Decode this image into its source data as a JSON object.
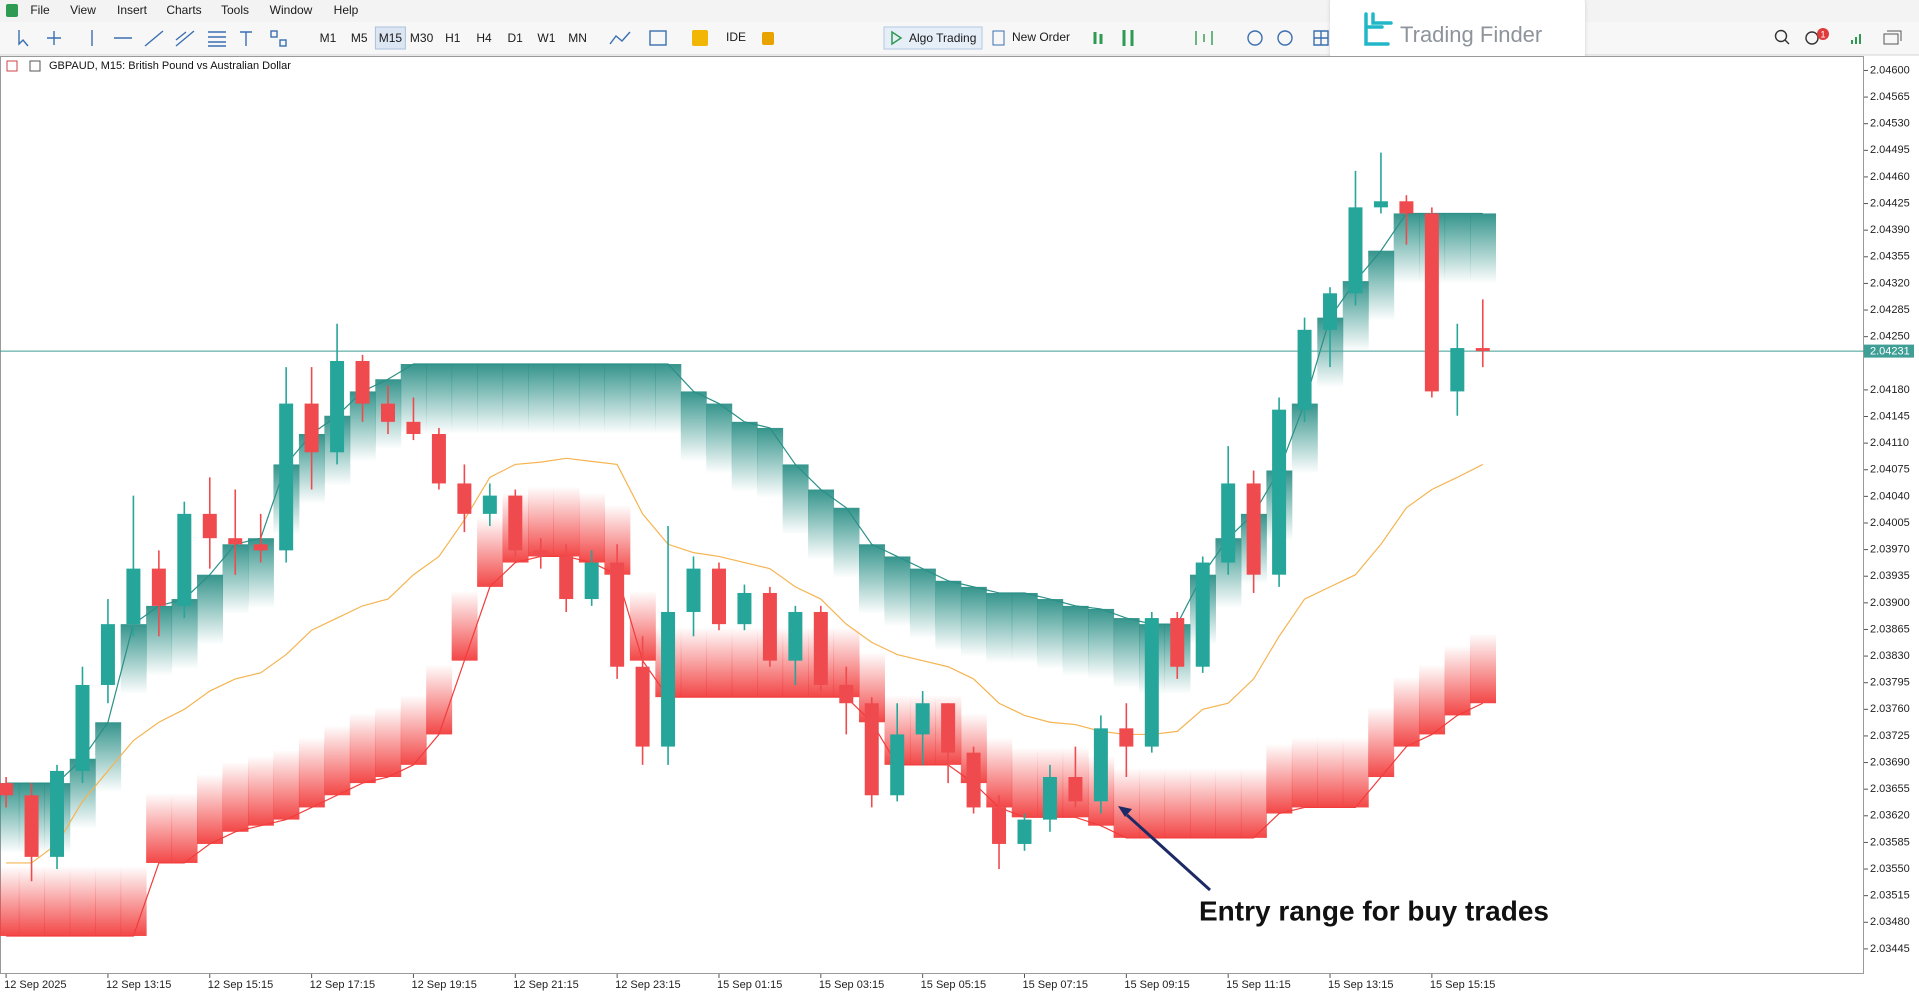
{
  "menu": [
    "File",
    "View",
    "Insert",
    "Charts",
    "Tools",
    "Window",
    "Help"
  ],
  "toolbar": {
    "timeframes": [
      "M1",
      "M5",
      "M15",
      "M30",
      "H1",
      "H4",
      "D1",
      "W1",
      "MN"
    ],
    "active_timeframe_index": 2,
    "ide": "IDE",
    "algo_trading": "Algo Trading",
    "new_order": "New Order"
  },
  "logo": "Trading Finder",
  "notification_count": 1,
  "chart_data": {
    "type": "candlestick",
    "title": "GBPAUD, M15:  British Pound vs Australian Dollar",
    "annotation": "Entry range for buy trades",
    "up_color": "#26a69a",
    "down_color": "#ef4b4f",
    "open": [
      2.03663,
      2.03647,
      2.03566,
      2.03679,
      2.03792,
      2.03872,
      2.03945,
      2.03896,
      2.04017,
      2.03985,
      2.03977,
      2.03969,
      2.04162,
      2.04098,
      2.04218,
      2.04162,
      2.04138,
      2.04122,
      2.04057,
      2.04017,
      2.04041,
      2.03969,
      2.03961,
      2.03905,
      2.03953,
      2.03816,
      2.03711,
      2.03888,
      2.03945,
      2.03872,
      2.03913,
      2.03824,
      2.03888,
      2.03792,
      2.03768,
      2.03647,
      2.03727,
      2.03768,
      2.03703,
      2.03631,
      2.03583,
      2.03615,
      2.03671,
      2.03639,
      2.03735,
      2.03711,
      2.0388,
      2.03816,
      2.03953,
      2.04057,
      2.03937,
      2.04154,
      2.04259,
      2.04307,
      2.0442,
      2.04428,
      2.04412,
      2.04178,
      2.04235
    ],
    "high": [
      2.03671,
      2.03663,
      2.03687,
      2.03816,
      2.03905,
      2.04041,
      2.03969,
      2.04033,
      2.04065,
      2.04049,
      2.04017,
      2.0421,
      2.0421,
      2.04267,
      2.04226,
      2.04186,
      2.0417,
      2.0413,
      2.04082,
      2.04057,
      2.04049,
      2.03985,
      2.03977,
      2.03969,
      2.03977,
      2.03856,
      2.04001,
      2.03961,
      2.03953,
      2.03924,
      2.03921,
      2.03896,
      2.03896,
      2.03816,
      2.03776,
      2.03768,
      2.03784,
      2.03768,
      2.03711,
      2.03647,
      2.03623,
      2.03687,
      2.03711,
      2.03752,
      2.03768,
      2.03888,
      2.03888,
      2.03961,
      2.04106,
      2.04074,
      2.0417,
      2.04275,
      2.04315,
      2.04468,
      2.04492,
      2.04436,
      2.0442,
      2.04267,
      2.04299
    ],
    "low": [
      2.03631,
      2.03534,
      2.0355,
      2.03663,
      2.03768,
      2.03856,
      2.03856,
      2.0388,
      2.03945,
      2.03937,
      2.03953,
      2.03953,
      2.04049,
      2.04082,
      2.04138,
      2.04122,
      2.04114,
      2.04049,
      2.03993,
      2.04001,
      2.03961,
      2.03945,
      2.03888,
      2.03896,
      2.038,
      2.03687,
      2.03687,
      2.03856,
      2.03864,
      2.03864,
      2.03816,
      2.03792,
      2.03784,
      2.03727,
      2.03631,
      2.03639,
      2.03687,
      2.03663,
      2.03623,
      2.0355,
      2.03574,
      2.03599,
      2.03631,
      2.03623,
      2.03671,
      2.03703,
      2.038,
      2.03808,
      2.03937,
      2.03913,
      2.03921,
      2.04138,
      2.0421,
      2.04291,
      2.04412,
      2.04371,
      2.0417,
      2.04146,
      2.0421
    ],
    "close": [
      2.03647,
      2.03566,
      2.03679,
      2.03792,
      2.03872,
      2.03945,
      2.03896,
      2.04017,
      2.03985,
      2.03977,
      2.03969,
      2.04162,
      2.04098,
      2.04218,
      2.04162,
      2.04138,
      2.04122,
      2.04057,
      2.04017,
      2.04041,
      2.03969,
      2.03961,
      2.03905,
      2.03953,
      2.03816,
      2.03711,
      2.03888,
      2.03945,
      2.03872,
      2.03913,
      2.03824,
      2.03888,
      2.03792,
      2.03768,
      2.03647,
      2.03727,
      2.03768,
      2.03703,
      2.03631,
      2.03583,
      2.03615,
      2.03671,
      2.03639,
      2.03735,
      2.03711,
      2.0388,
      2.03816,
      2.03953,
      2.04057,
      2.03937,
      2.04154,
      2.04259,
      2.04307,
      2.0442,
      2.04428,
      2.04412,
      2.04178,
      2.04235,
      2.04231
    ],
    "bands": [
      {
        "color": "#2a8f86",
        "fade": "down",
        "values": [
          2.03663,
          2.03663,
          2.03663,
          2.03695,
          2.03743,
          2.03872,
          2.03896,
          2.03905,
          2.03937,
          2.03977,
          2.03985,
          2.04082,
          2.04122,
          2.04146,
          2.04178,
          2.04194,
          2.04214,
          2.04214,
          2.04214,
          2.04214,
          2.04214,
          2.04214,
          2.04214,
          2.04214,
          2.04214,
          2.04214,
          2.04214,
          2.04178,
          2.04162,
          2.04138,
          2.0413,
          2.04082,
          2.04049,
          2.04025,
          2.03977,
          2.03961,
          2.03945,
          2.03929,
          2.03921,
          2.03913,
          2.03913,
          2.03905,
          2.03896,
          2.03892,
          2.0388,
          2.03872,
          2.03872,
          2.03937,
          2.03985,
          2.04017,
          2.04074,
          2.04162,
          2.04275,
          2.04323,
          2.04363,
          2.04412,
          2.04412,
          2.04412,
          2.04412
        ]
      },
      {
        "color": "#f23c3c",
        "fade": "up",
        "values": [
          2.03462,
          2.03462,
          2.03462,
          2.03462,
          2.03462,
          2.03462,
          2.03558,
          2.03558,
          2.03583,
          2.03599,
          2.03607,
          2.03615,
          2.03631,
          2.03647,
          2.03663,
          2.03671,
          2.03687,
          2.03727,
          2.03824,
          2.03921,
          2.03953,
          2.03961,
          2.03961,
          2.03953,
          2.03937,
          2.03824,
          2.03776,
          2.03776,
          2.03776,
          2.03776,
          2.03776,
          2.03776,
          2.03776,
          2.03776,
          2.03743,
          2.03687,
          2.03687,
          2.03687,
          2.03663,
          2.03631,
          2.03618,
          2.03618,
          2.03618,
          2.03607,
          2.03591,
          2.03591,
          2.03591,
          2.03591,
          2.03591,
          2.03591,
          2.03623,
          2.03631,
          2.03631,
          2.03631,
          2.03671,
          2.03711,
          2.03727,
          2.03752,
          2.03768
        ]
      }
    ],
    "lines": [
      {
        "color": "#f5b451",
        "values": [
          2.03558,
          2.03558,
          2.03583,
          2.03639,
          2.03679,
          2.03719,
          2.03743,
          2.0376,
          2.03784,
          2.038,
          2.03808,
          2.03832,
          2.03864,
          2.0388,
          2.03896,
          2.03905,
          2.03937,
          2.03961,
          2.04009,
          2.04065,
          2.04082,
          2.04085,
          2.0409,
          2.04086,
          2.04082,
          2.04017,
          2.03977,
          2.03966,
          2.03961,
          2.03953,
          2.03945,
          2.03921,
          2.03905,
          2.03872,
          2.03848,
          2.03832,
          2.03824,
          2.03816,
          2.038,
          2.03768,
          2.03752,
          2.03743,
          2.0374,
          2.03731,
          2.03727,
          2.03727,
          2.03731,
          2.0376,
          2.03768,
          2.038,
          2.03856,
          2.03905,
          2.03921,
          2.03937,
          2.03977,
          2.04025,
          2.04049,
          2.04065,
          2.04082
        ]
      }
    ],
    "current_price": 2.04231,
    "current_price_color": "#3f9e95",
    "ylim": [
      2.03412,
      2.04619
    ],
    "yticks": [
      {
        "value": 2.046,
        "label": "2.04600"
      },
      2.04565,
      {
        "value": 2.0453,
        "label": "2.04530"
      },
      2.04495,
      {
        "value": 2.0446,
        "label": "2.04460"
      },
      2.04425,
      {
        "value": 2.0439,
        "label": "2.04390"
      },
      2.04355,
      {
        "value": 2.0432,
        "label": "2.04320"
      },
      2.04285,
      {
        "value": 2.0425,
        "label": "2.04250"
      },
      {
        "value": 2.0418,
        "label": "2.04180"
      },
      2.04145,
      {
        "value": 2.0411,
        "label": "2.04110"
      },
      2.04075,
      {
        "value": 2.0404,
        "label": "2.04040"
      },
      2.04005,
      {
        "value": 2.0397,
        "label": "2.03970"
      },
      2.03935,
      {
        "value": 2.039,
        "label": "2.03900"
      },
      2.03865,
      {
        "value": 2.0383,
        "label": "2.03830"
      },
      2.03795,
      {
        "value": 2.0376,
        "label": "2.03760"
      },
      2.03725,
      {
        "value": 2.0369,
        "label": "2.03690"
      },
      2.03655,
      {
        "value": 2.0362,
        "label": "2.03620"
      },
      2.03585,
      {
        "value": 2.0355,
        "label": "2.03550"
      },
      2.03515,
      {
        "value": 2.0348,
        "label": "2.03480"
      },
      2.03445
    ],
    "xticks": [
      {
        "value": 0,
        "label": "12 Sep 2025"
      },
      {
        "value": 4,
        "label": "12 Sep 13:15"
      },
      {
        "value": 8,
        "label": "12 Sep 15:15"
      },
      {
        "value": 12,
        "label": "12 Sep 17:15"
      },
      {
        "value": 16,
        "label": "12 Sep 19:15"
      },
      {
        "value": 20,
        "label": "12 Sep 21:15"
      },
      {
        "value": 24,
        "label": "12 Sep 23:15"
      },
      {
        "value": 28,
        "label": "15 Sep 01:15"
      },
      {
        "value": 32,
        "label": "15 Sep 03:15"
      },
      {
        "value": 36,
        "label": "15 Sep 05:15"
      },
      {
        "value": 40,
        "label": "15 Sep 07:15"
      },
      {
        "value": 44,
        "label": "15 Sep 09:15"
      },
      {
        "value": 48,
        "label": "15 Sep 11:15"
      },
      {
        "value": 52,
        "label": "15 Sep 13:15"
      },
      {
        "value": 56,
        "label": "15 Sep 15:15"
      }
    ]
  }
}
